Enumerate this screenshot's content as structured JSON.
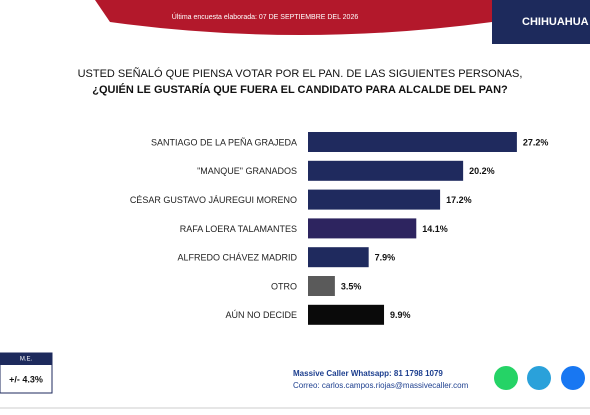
{
  "chart_data": {
    "type": "hbar",
    "title": "USTED SEÑALÓ QUE PIENSA VOTAR POR EL PAN. DE LAS SIGUIENTES PERSONAS,",
    "subtitle": "¿QUIÉN LE GUSTARÍA QUE FUERA EL CANDIDATO PARA ALCALDE DEL PAN?",
    "categories": [
      "SANTIAGO DE LA PEÑA GRAJEDA",
      "\"MANQUE\" GRANADOS",
      "CÉSAR GUSTAVO JÁUREGUI MORENO",
      "RAFA LOERA TALAMANTES",
      "ALFREDO CHÁVEZ MADRID",
      "OTRO",
      "AÚN NO DECIDE"
    ],
    "values": [
      27.2,
      20.2,
      17.2,
      14.1,
      7.9,
      3.5,
      9.9
    ],
    "value_labels": [
      "27.2%",
      "20.2%",
      "17.2%",
      "14.1%",
      "7.9%",
      "3.5%",
      "9.9%"
    ],
    "colors": [
      "#1f2a5e",
      "#1f2a5e",
      "#1f2a5e",
      "#2d245f",
      "#1f2a5e",
      "#5a5a5a",
      "#0a0a0a"
    ]
  },
  "header": {
    "date": "Última encuesta elaborada: 07 DE SEPTIEMBRE DEL 2026",
    "region": "CHIHUAHUA"
  },
  "margin": {
    "label": "M.E.",
    "value": "+/- 4.3%"
  },
  "footer": {
    "whatsapp": "Massive Caller Whatsapp: 81 1798 1079",
    "email": "Correo: carlos.campos.riojas@massivecaller.com"
  }
}
